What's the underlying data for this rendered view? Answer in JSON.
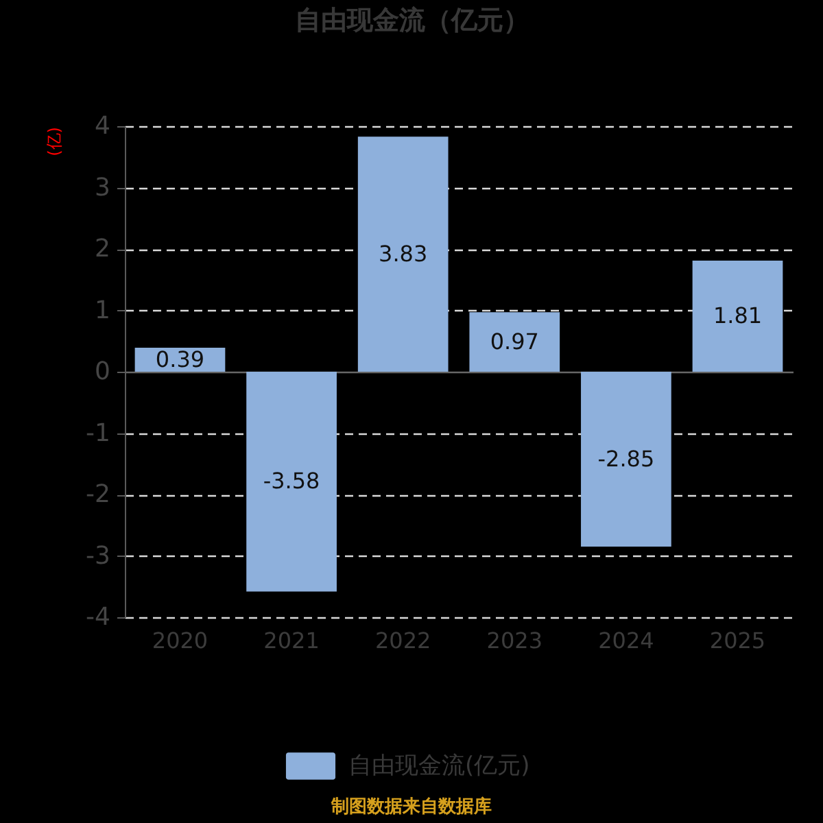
{
  "chart_data": {
    "type": "bar",
    "title": "自由现金流（亿元）",
    "ylabel": "(亿)",
    "categories": [
      "2020",
      "2021",
      "2022",
      "2023",
      "2024",
      "2025"
    ],
    "series": [
      {
        "name": "自由现金流(亿元)",
        "color": "#8eb0dc",
        "values": [
          0.39,
          -3.58,
          3.83,
          0.97,
          -2.85,
          1.81
        ]
      }
    ],
    "ylim": [
      -4,
      4
    ],
    "yticks": [
      -4,
      -3,
      -2,
      -1,
      0,
      1,
      2,
      3,
      4
    ],
    "grid": "y",
    "legend": "bottom",
    "data_labels": true,
    "annotations": [
      "制图数据来自数据库"
    ]
  }
}
